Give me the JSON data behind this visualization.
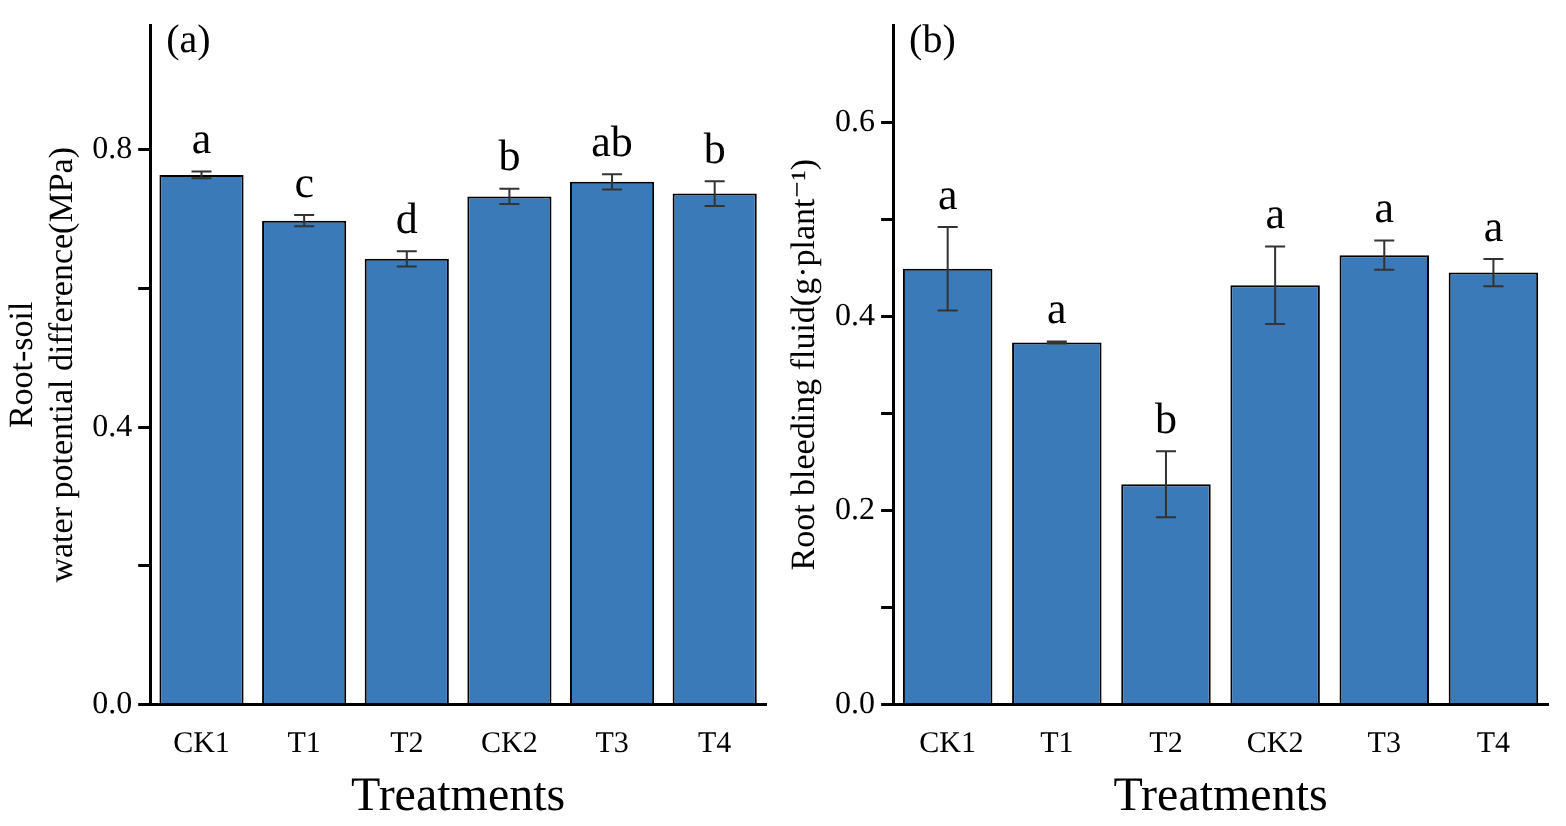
{
  "chart_data": [
    {
      "type": "bar",
      "title": "(a)",
      "xlabel": "Treatments",
      "ylabel": "Root-soil\nwater potential difference(MPa)",
      "categories": [
        "CK1",
        "T1",
        "T2",
        "CK2",
        "T3",
        "T4"
      ],
      "values": [
        0.764,
        0.698,
        0.643,
        0.733,
        0.754,
        0.737
      ],
      "errors": [
        0.005,
        0.008,
        0.011,
        0.011,
        0.011,
        0.018
      ],
      "color": "#3a7ab8",
      "ylim": [
        0,
        0.98
      ],
      "yticks": [
        {
          "value": 0,
          "label": "0.0"
        },
        {
          "value": 0.2,
          "label": null
        },
        0.4,
        {
          "value": 0.6,
          "label": null
        },
        0.8
      ],
      "annotations": [
        {
          "text": "a",
          "x": "CK1",
          "y": 0.769
        },
        {
          "text": "c",
          "x": "T1",
          "y": 0.706
        },
        {
          "text": "d",
          "x": "T2",
          "y": 0.654
        },
        {
          "text": "b",
          "x": "CK2",
          "y": 0.744
        },
        {
          "text": "ab",
          "x": "T3",
          "y": 0.765
        },
        {
          "text": "b",
          "x": "T4",
          "y": 0.755
        }
      ]
    },
    {
      "type": "bar",
      "title": "(b)",
      "xlabel": "Treatments",
      "ylabel": "Root bleeding fluid(g·plant⁻¹)",
      "categories": [
        "CK1",
        "T1",
        "T2",
        "CK2",
        "T3",
        "T4"
      ],
      "values": [
        0.449,
        0.373,
        0.227,
        0.432,
        0.463,
        0.445
      ],
      "errors": [
        0.043,
        0.001,
        0.034,
        0.04,
        0.015,
        0.014
      ],
      "color": "#3a7ab8",
      "ylim": [
        0,
        0.7
      ],
      "yticks": [
        {
          "value": 0,
          "label": "0.0"
        },
        {
          "value": 0.1,
          "label": null
        },
        0.2,
        {
          "value": 0.3,
          "label": null
        },
        0.4,
        {
          "value": 0.5,
          "label": null
        },
        0.6
      ],
      "annotations": [
        {
          "text": "a",
          "x": "CK1",
          "y": 0.492
        },
        {
          "text": "a",
          "x": "T1",
          "y": 0.374
        },
        {
          "text": "b",
          "x": "T2",
          "y": 0.261
        },
        {
          "text": "a",
          "x": "CK2",
          "y": 0.472
        },
        {
          "text": "a",
          "x": "T3",
          "y": 0.478
        },
        {
          "text": "a",
          "x": "T4",
          "y": 0.459
        }
      ]
    }
  ]
}
